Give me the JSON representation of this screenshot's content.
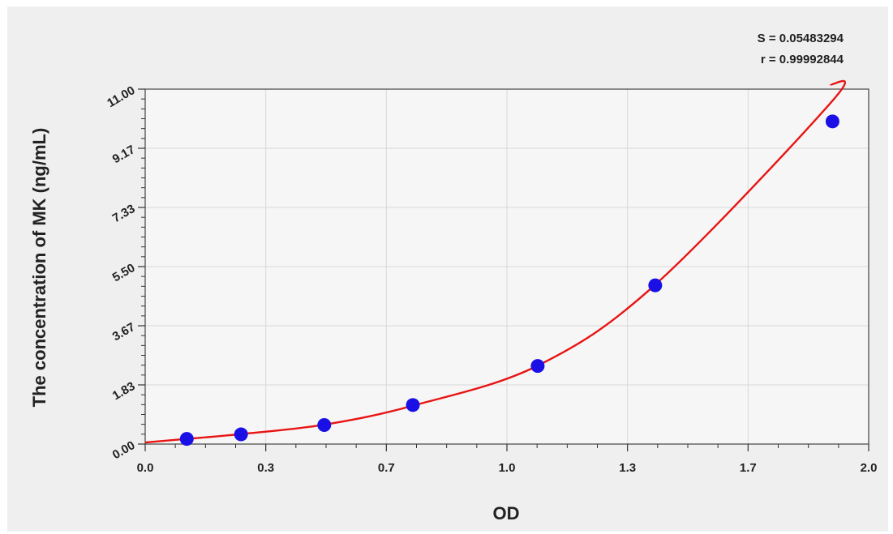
{
  "chart_data": {
    "type": "scatter",
    "xlabel": "OD",
    "ylabel": "The concentration of MK (ng/mL)",
    "xlim": [
      0.0,
      2.0
    ],
    "ylim": [
      0.0,
      11.0
    ],
    "x_ticks": [
      "0.0",
      "0.3",
      "0.7",
      "1.0",
      "1.3",
      "1.7",
      "2.0"
    ],
    "y_ticks": [
      "0.00",
      "1.83",
      "3.67",
      "5.50",
      "7.33",
      "9.17",
      "11.00"
    ],
    "grid": true,
    "points": [
      {
        "x": 0.115,
        "y": 0.16
      },
      {
        "x": 0.265,
        "y": 0.3
      },
      {
        "x": 0.495,
        "y": 0.59
      },
      {
        "x": 0.74,
        "y": 1.21
      },
      {
        "x": 1.085,
        "y": 2.42
      },
      {
        "x": 1.41,
        "y": 4.92
      },
      {
        "x": 1.9,
        "y": 10.0
      }
    ],
    "fit_curve": {
      "x": [
        0.0,
        0.115,
        0.265,
        0.495,
        0.74,
        1.085,
        1.41,
        1.9,
        1.9
      ],
      "y": [
        0.05,
        0.16,
        0.31,
        0.6,
        1.19,
        2.43,
        4.94,
        10.64,
        11.0
      ]
    },
    "stats": {
      "s": "S = 0.05483294",
      "r": "r = 0.99992844"
    },
    "colors": {
      "points": "#1a10e6",
      "curve": "#e81414",
      "grid": "#d8d8d8",
      "background": "#efefef"
    }
  }
}
